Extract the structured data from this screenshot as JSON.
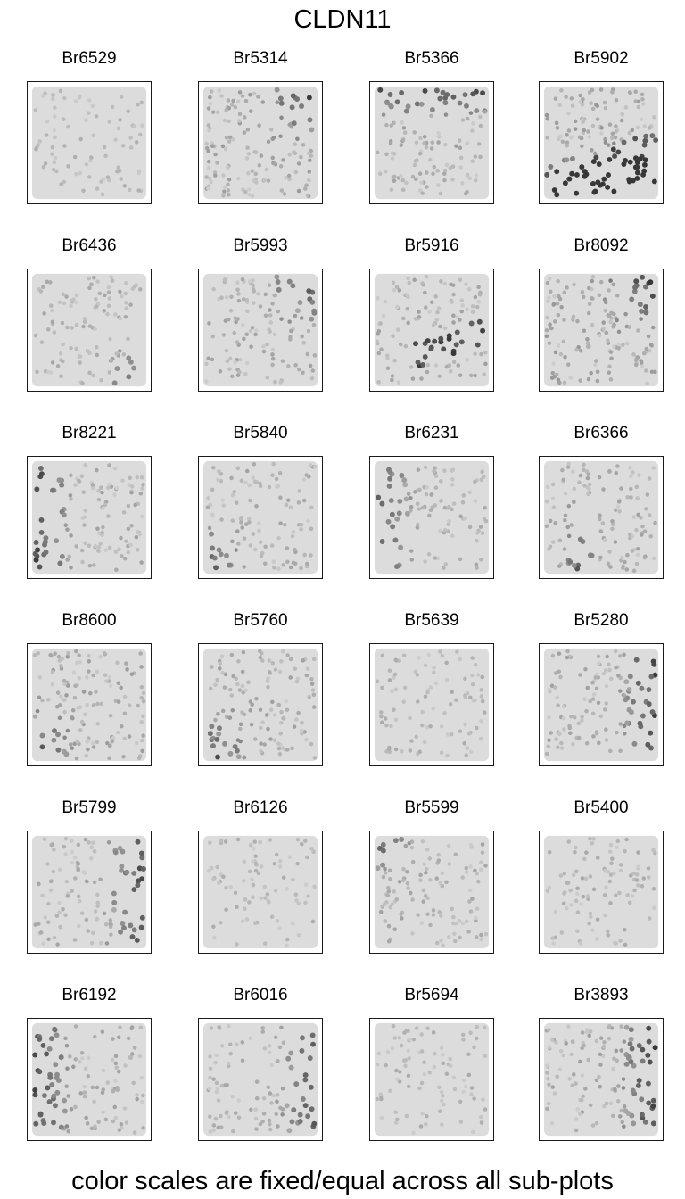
{
  "title": "CLDN11",
  "footer": "color scales are fixed/equal across all sub-plots",
  "colors": {
    "tissue_base": "#dcdcdc",
    "spot_low": "#cfcfcf",
    "spot_high": "#3a3a3a",
    "frame": "#1a1a1a"
  },
  "chart_data": {
    "type": "scatter",
    "description_gene": "CLDN11",
    "layout": {
      "rows": 6,
      "cols": 4
    },
    "color_scale": "grayscale, fixed across all sub-plots",
    "panels": [
      {
        "sample": "Br6529",
        "hotspot": "none",
        "intensity": 0.15
      },
      {
        "sample": "Br5314",
        "hotspot": "top-right",
        "intensity": 0.85
      },
      {
        "sample": "Br5366",
        "hotspot": "top",
        "intensity": 0.6
      },
      {
        "sample": "Br5902",
        "hotspot": "bottom",
        "intensity": 0.9
      },
      {
        "sample": "Br6436",
        "hotspot": "bottom-right",
        "intensity": 0.45
      },
      {
        "sample": "Br5993",
        "hotspot": "top-right",
        "intensity": 0.6
      },
      {
        "sample": "Br5916",
        "hotspot": "right-band",
        "intensity": 0.65
      },
      {
        "sample": "Br8092",
        "hotspot": "top-right",
        "intensity": 0.9
      },
      {
        "sample": "Br8221",
        "hotspot": "left",
        "intensity": 0.6
      },
      {
        "sample": "Br5840",
        "hotspot": "bottom-left",
        "intensity": 0.5
      },
      {
        "sample": "Br6231",
        "hotspot": "left",
        "intensity": 0.4
      },
      {
        "sample": "Br6366",
        "hotspot": "left-center",
        "intensity": 0.6
      },
      {
        "sample": "Br8600",
        "hotspot": "bottom-left",
        "intensity": 0.75
      },
      {
        "sample": "Br5760",
        "hotspot": "bottom-left",
        "intensity": 0.7
      },
      {
        "sample": "Br5639",
        "hotspot": "none",
        "intensity": 0.3
      },
      {
        "sample": "Br5280",
        "hotspot": "right",
        "intensity": 0.6
      },
      {
        "sample": "Br5799",
        "hotspot": "right",
        "intensity": 0.5
      },
      {
        "sample": "Br6126",
        "hotspot": "none",
        "intensity": 0.2
      },
      {
        "sample": "Br5599",
        "hotspot": "top-left",
        "intensity": 0.55
      },
      {
        "sample": "Br5400",
        "hotspot": "none",
        "intensity": 0.35
      },
      {
        "sample": "Br6192",
        "hotspot": "left",
        "intensity": 0.55
      },
      {
        "sample": "Br6016",
        "hotspot": "right",
        "intensity": 0.4
      },
      {
        "sample": "Br5694",
        "hotspot": "none",
        "intensity": 0.25
      },
      {
        "sample": "Br3893",
        "hotspot": "right",
        "intensity": 0.65
      }
    ]
  }
}
